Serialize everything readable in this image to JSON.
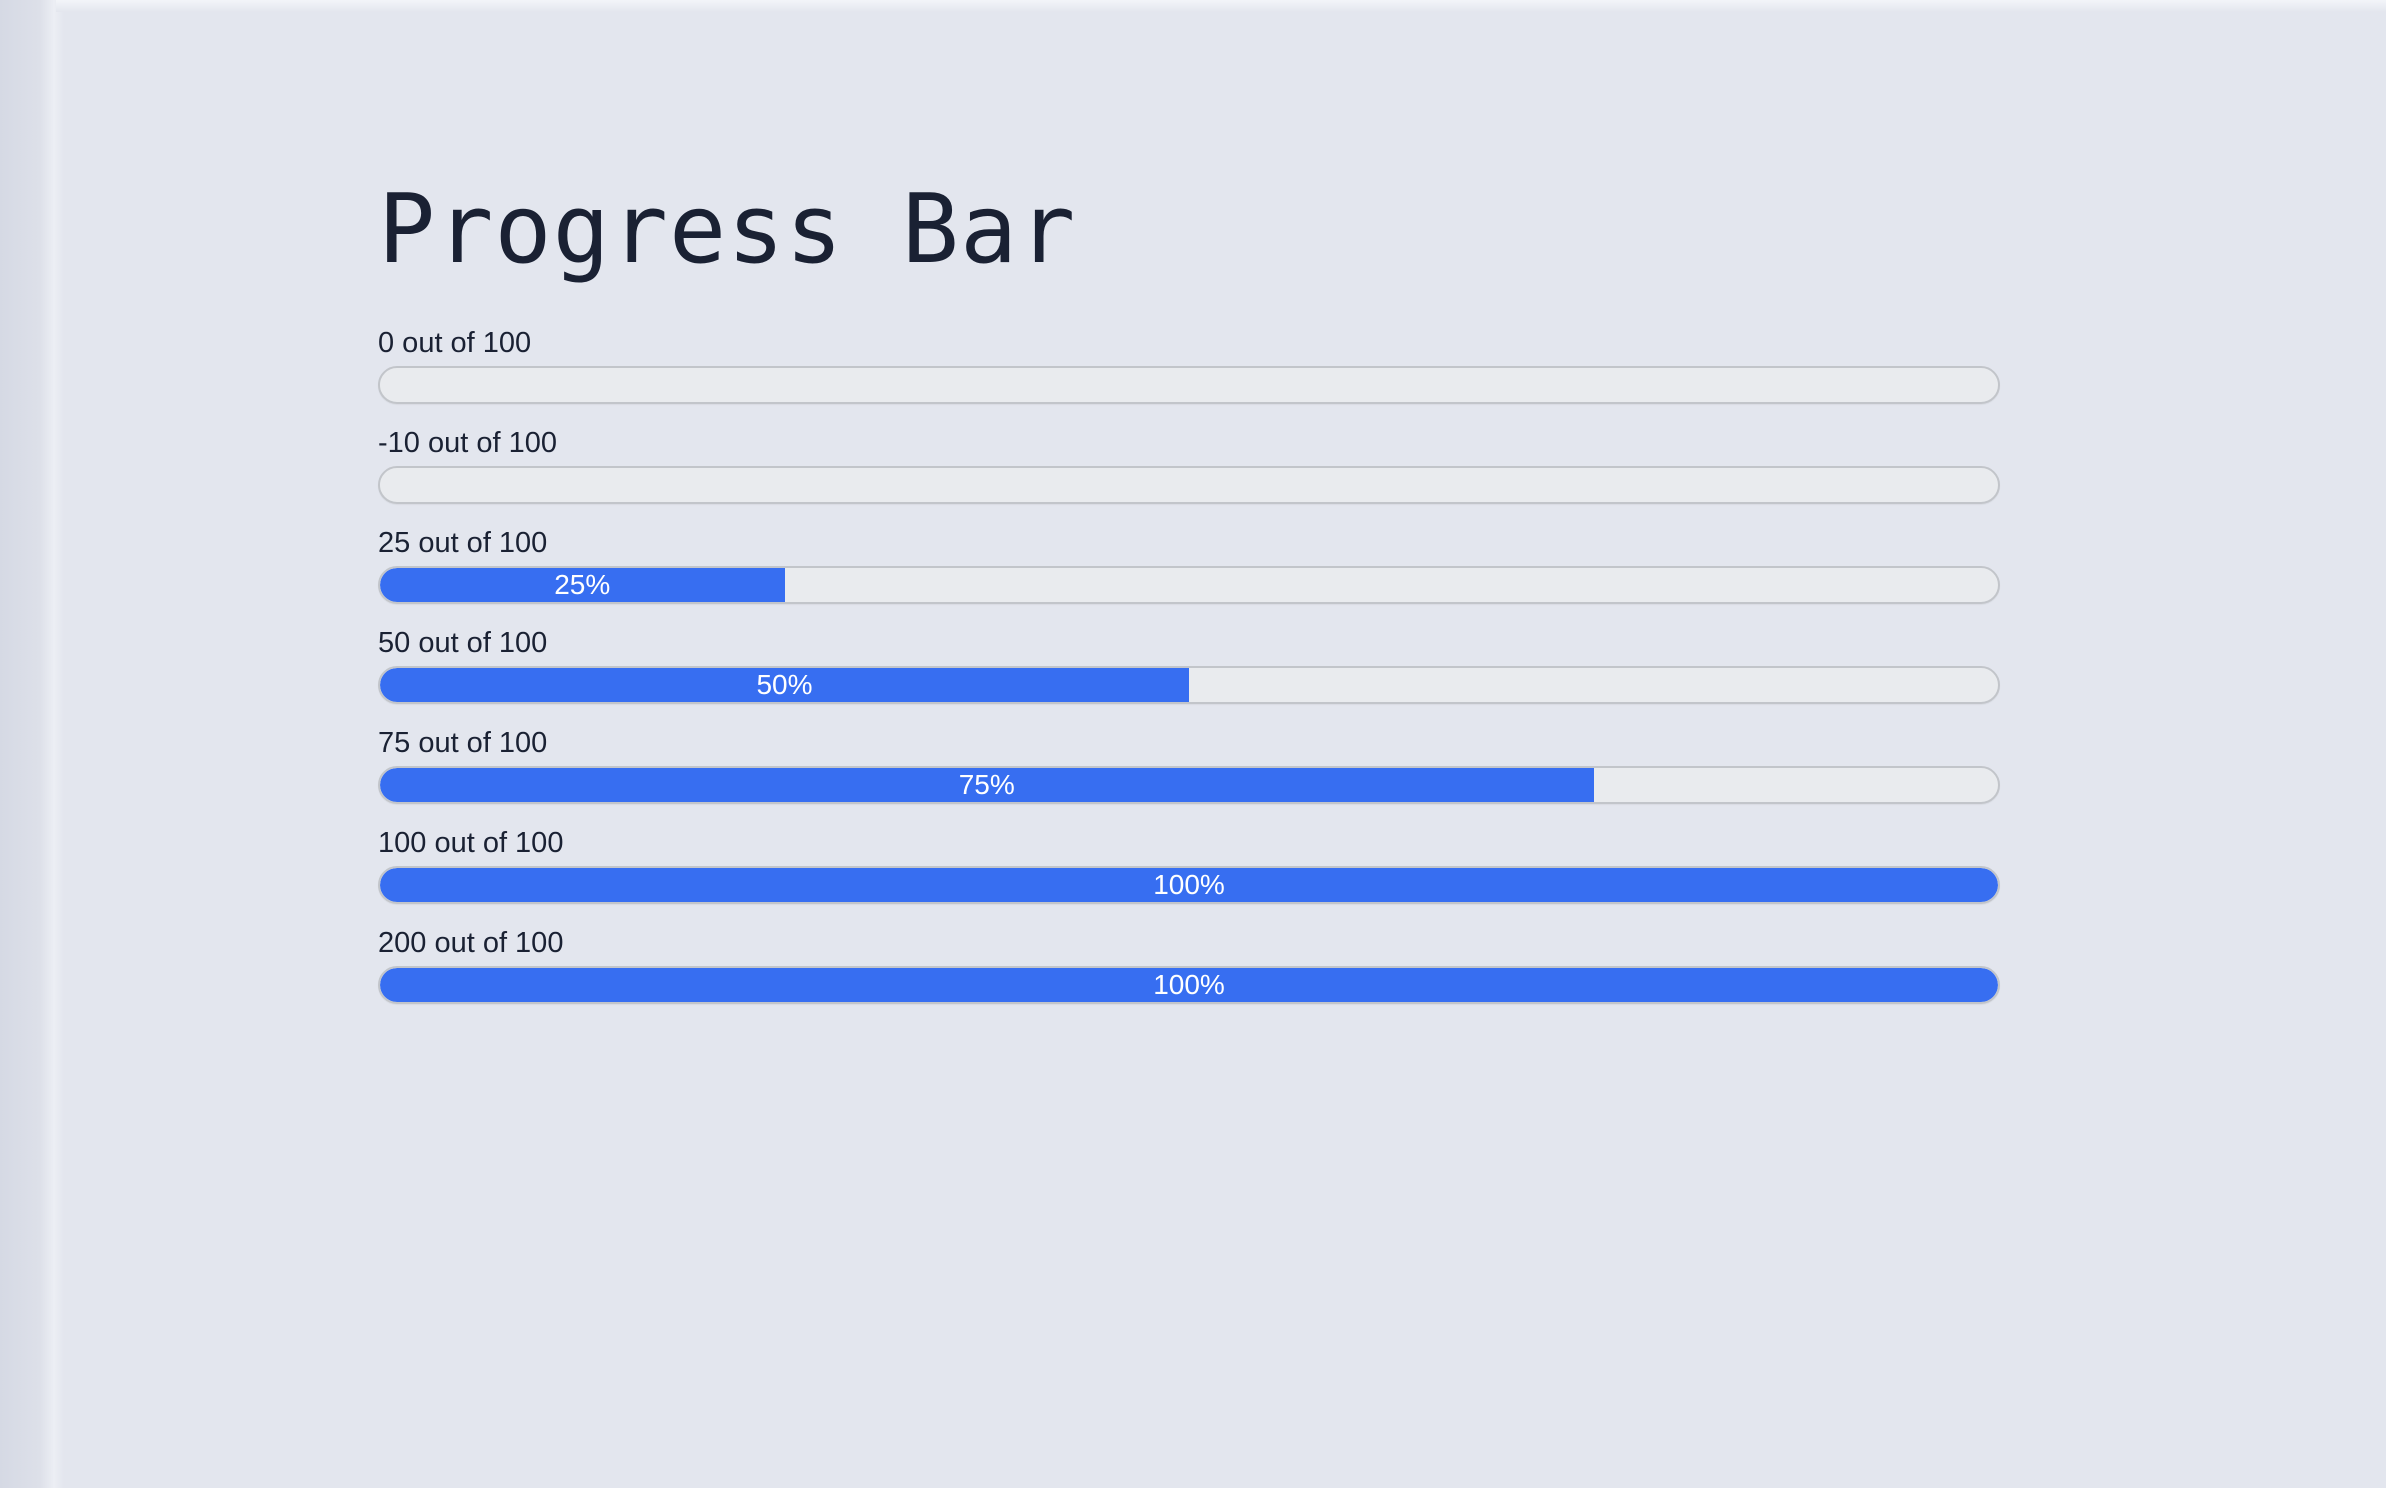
{
  "page": {
    "title": "Progress Bar"
  },
  "colors": {
    "background": "#e3e6ee",
    "text": "#1a2133",
    "track": "#e9ebee",
    "track_border": "#c2c5ca",
    "fill": "#376ef1",
    "percent_text": "#ffffff"
  },
  "progress_bars": [
    {
      "label": "0 out of 100",
      "value": 0,
      "max": 100,
      "percent": 0,
      "percent_label": ""
    },
    {
      "label": "-10 out of 100",
      "value": -10,
      "max": 100,
      "percent": 0,
      "percent_label": ""
    },
    {
      "label": "25 out of 100",
      "value": 25,
      "max": 100,
      "percent": 25,
      "percent_label": "25%"
    },
    {
      "label": "50 out of 100",
      "value": 50,
      "max": 100,
      "percent": 50,
      "percent_label": "50%"
    },
    {
      "label": "75 out of 100",
      "value": 75,
      "max": 100,
      "percent": 75,
      "percent_label": "75%"
    },
    {
      "label": "100 out of 100",
      "value": 100,
      "max": 100,
      "percent": 100,
      "percent_label": "100%"
    },
    {
      "label": "200 out of 100",
      "value": 200,
      "max": 100,
      "percent": 100,
      "percent_label": "100%"
    }
  ]
}
